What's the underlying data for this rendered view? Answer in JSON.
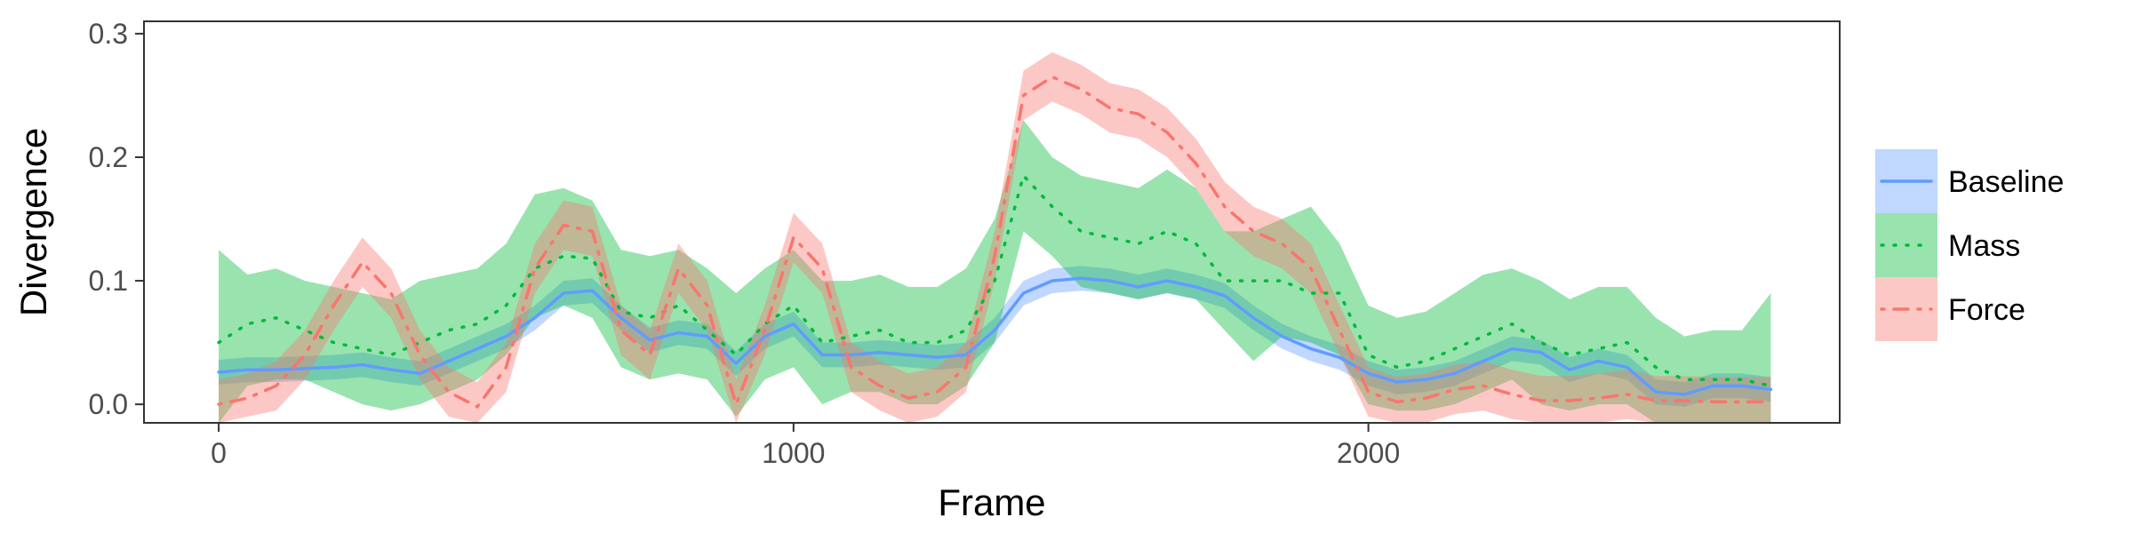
{
  "chart_data": {
    "type": "line",
    "xlabel": "Frame",
    "ylabel": "Divergence",
    "xlim": [
      -130,
      2820
    ],
    "ylim": [
      -0.015,
      0.31
    ],
    "x_ticks": [
      0,
      1000,
      2000
    ],
    "x_tick_labels": [
      "0",
      "1000",
      "2000"
    ],
    "y_ticks": [
      0.0,
      0.1,
      0.2,
      0.3
    ],
    "y_tick_labels": [
      "0.0",
      "0.1",
      "0.2",
      "0.3"
    ],
    "grid": false,
    "legend_position": "right",
    "x": [
      0,
      50,
      100,
      150,
      200,
      250,
      300,
      350,
      400,
      450,
      500,
      550,
      600,
      650,
      700,
      750,
      800,
      850,
      900,
      950,
      1000,
      1050,
      1100,
      1150,
      1200,
      1250,
      1300,
      1350,
      1400,
      1450,
      1500,
      1550,
      1600,
      1650,
      1700,
      1750,
      1800,
      1850,
      1900,
      1950,
      2000,
      2050,
      2100,
      2150,
      2200,
      2250,
      2300,
      2350,
      2400,
      2450,
      2500,
      2550,
      2600,
      2650,
      2700
    ],
    "series": [
      {
        "name": "Baseline",
        "color": "#619CFF",
        "dash": "solid",
        "values": [
          0.026,
          0.028,
          0.028,
          0.029,
          0.03,
          0.032,
          0.028,
          0.025,
          0.035,
          0.045,
          0.055,
          0.07,
          0.09,
          0.092,
          0.07,
          0.052,
          0.058,
          0.055,
          0.033,
          0.055,
          0.065,
          0.04,
          0.04,
          0.042,
          0.04,
          0.038,
          0.04,
          0.06,
          0.09,
          0.1,
          0.102,
          0.1,
          0.095,
          0.1,
          0.095,
          0.088,
          0.07,
          0.055,
          0.045,
          0.038,
          0.025,
          0.018,
          0.02,
          0.025,
          0.035,
          0.045,
          0.042,
          0.028,
          0.035,
          0.03,
          0.01,
          0.008,
          0.015,
          0.015,
          0.012
        ],
        "lower": [
          0.016,
          0.018,
          0.018,
          0.019,
          0.02,
          0.022,
          0.018,
          0.015,
          0.025,
          0.035,
          0.045,
          0.06,
          0.08,
          0.082,
          0.06,
          0.042,
          0.048,
          0.045,
          0.023,
          0.045,
          0.055,
          0.03,
          0.03,
          0.032,
          0.03,
          0.028,
          0.03,
          0.05,
          0.08,
          0.09,
          0.092,
          0.09,
          0.085,
          0.09,
          0.085,
          0.078,
          0.06,
          0.045,
          0.035,
          0.028,
          0.015,
          0.008,
          0.01,
          0.015,
          0.025,
          0.035,
          0.032,
          0.018,
          0.025,
          0.02,
          0.0,
          -0.002,
          0.005,
          0.005,
          0.002
        ],
        "upper": [
          0.036,
          0.038,
          0.038,
          0.039,
          0.04,
          0.042,
          0.038,
          0.035,
          0.045,
          0.055,
          0.065,
          0.08,
          0.1,
          0.102,
          0.08,
          0.062,
          0.068,
          0.065,
          0.043,
          0.065,
          0.075,
          0.05,
          0.05,
          0.052,
          0.05,
          0.048,
          0.05,
          0.07,
          0.1,
          0.11,
          0.112,
          0.11,
          0.105,
          0.11,
          0.105,
          0.098,
          0.08,
          0.065,
          0.055,
          0.048,
          0.035,
          0.028,
          0.03,
          0.035,
          0.045,
          0.055,
          0.052,
          0.038,
          0.045,
          0.04,
          0.02,
          0.018,
          0.025,
          0.025,
          0.022
        ]
      },
      {
        "name": "Mass",
        "color": "#00BA38",
        "dash": "dotted",
        "values": [
          0.05,
          0.065,
          0.07,
          0.06,
          0.05,
          0.045,
          0.04,
          0.05,
          0.06,
          0.065,
          0.08,
          0.11,
          0.12,
          0.118,
          0.075,
          0.07,
          0.08,
          0.06,
          0.04,
          0.065,
          0.08,
          0.05,
          0.055,
          0.06,
          0.05,
          0.05,
          0.06,
          0.1,
          0.185,
          0.16,
          0.14,
          0.135,
          0.13,
          0.14,
          0.13,
          0.1,
          0.1,
          0.1,
          0.09,
          0.09,
          0.04,
          0.03,
          0.035,
          0.045,
          0.055,
          0.065,
          0.05,
          0.04,
          0.045,
          0.05,
          0.03,
          0.02,
          0.02,
          0.02,
          0.015
        ],
        "lower": [
          -0.015,
          0.015,
          0.02,
          0.02,
          0.01,
          0.0,
          -0.005,
          0.0,
          0.01,
          0.02,
          0.04,
          0.07,
          0.08,
          0.07,
          0.03,
          0.02,
          0.025,
          0.02,
          -0.01,
          0.02,
          0.03,
          0.0,
          0.01,
          0.01,
          0.0,
          0.0,
          0.015,
          0.05,
          0.14,
          0.12,
          0.095,
          0.09,
          0.085,
          0.09,
          0.085,
          0.06,
          0.035,
          0.055,
          0.05,
          0.04,
          0.0,
          -0.005,
          -0.005,
          0.0,
          0.01,
          0.02,
          0.0,
          -0.005,
          0.0,
          0.0,
          -0.015,
          -0.015,
          -0.015,
          -0.015,
          -0.015
        ],
        "upper": [
          0.125,
          0.105,
          0.11,
          0.1,
          0.095,
          0.09,
          0.085,
          0.1,
          0.105,
          0.11,
          0.13,
          0.17,
          0.175,
          0.165,
          0.125,
          0.12,
          0.125,
          0.11,
          0.09,
          0.11,
          0.125,
          0.1,
          0.1,
          0.105,
          0.095,
          0.095,
          0.11,
          0.15,
          0.23,
          0.2,
          0.185,
          0.18,
          0.175,
          0.19,
          0.175,
          0.14,
          0.14,
          0.15,
          0.16,
          0.13,
          0.08,
          0.07,
          0.075,
          0.09,
          0.105,
          0.11,
          0.1,
          0.085,
          0.095,
          0.095,
          0.07,
          0.055,
          0.06,
          0.06,
          0.09
        ]
      },
      {
        "name": "Force",
        "color": "#F8766D",
        "dash": "dashdot",
        "values": [
          0.0,
          0.005,
          0.015,
          0.04,
          0.08,
          0.115,
          0.09,
          0.04,
          0.01,
          -0.002,
          0.03,
          0.11,
          0.145,
          0.14,
          0.06,
          0.04,
          0.11,
          0.08,
          0.0,
          0.06,
          0.135,
          0.11,
          0.03,
          0.015,
          0.005,
          0.01,
          0.03,
          0.12,
          0.25,
          0.265,
          0.255,
          0.24,
          0.235,
          0.22,
          0.195,
          0.16,
          0.14,
          0.13,
          0.11,
          0.06,
          0.01,
          0.002,
          0.005,
          0.012,
          0.015,
          0.008,
          0.003,
          0.003,
          0.005,
          0.008,
          0.003,
          0.003,
          0.002,
          0.002,
          0.002
        ],
        "lower": [
          -0.015,
          -0.01,
          -0.005,
          0.02,
          0.06,
          0.095,
          0.07,
          0.02,
          -0.01,
          -0.015,
          0.01,
          0.09,
          0.125,
          0.12,
          0.04,
          0.02,
          0.09,
          0.06,
          -0.015,
          0.04,
          0.115,
          0.09,
          0.01,
          -0.005,
          -0.015,
          -0.01,
          0.01,
          0.1,
          0.23,
          0.245,
          0.235,
          0.22,
          0.215,
          0.2,
          0.175,
          0.14,
          0.12,
          0.11,
          0.09,
          0.04,
          -0.01,
          -0.015,
          -0.015,
          -0.008,
          -0.005,
          -0.012,
          -0.015,
          -0.015,
          -0.015,
          -0.012,
          -0.015,
          -0.015,
          -0.015,
          -0.015,
          -0.015
        ],
        "upper": [
          0.02,
          0.025,
          0.035,
          0.06,
          0.1,
          0.135,
          0.11,
          0.06,
          0.03,
          0.018,
          0.05,
          0.13,
          0.165,
          0.16,
          0.08,
          0.06,
          0.13,
          0.1,
          0.02,
          0.08,
          0.155,
          0.13,
          0.05,
          0.035,
          0.025,
          0.03,
          0.05,
          0.14,
          0.27,
          0.285,
          0.275,
          0.26,
          0.255,
          0.24,
          0.215,
          0.18,
          0.16,
          0.15,
          0.13,
          0.08,
          0.03,
          0.022,
          0.025,
          0.032,
          0.035,
          0.028,
          0.023,
          0.023,
          0.025,
          0.028,
          0.023,
          0.023,
          0.022,
          0.022,
          0.022
        ]
      }
    ]
  }
}
